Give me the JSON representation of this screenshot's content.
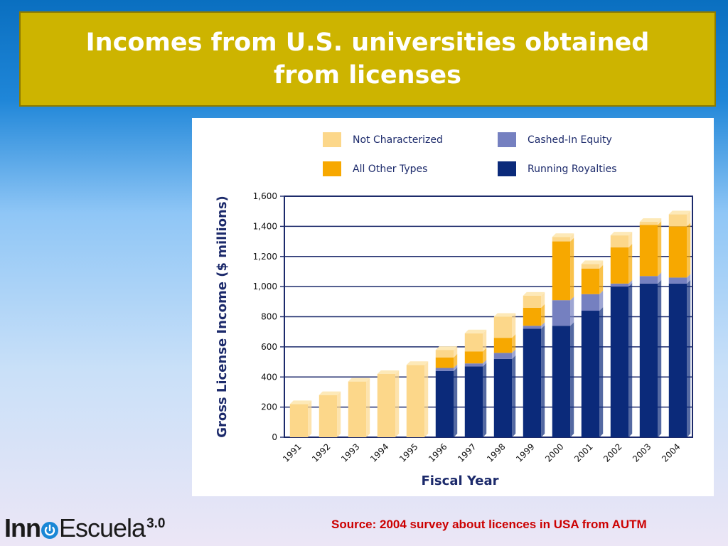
{
  "slide": {
    "title": "Incomes from U.S. universities obtained from licenses",
    "source": "Source: 2004 survey about licences in USA from AUTM"
  },
  "logo": {
    "part1": "Inn",
    "part2": "Escuela",
    "version": "3.0",
    "icon": "power-icon"
  },
  "colors": {
    "title_bg": "#cdb400",
    "not_characterized": "#fcd78a",
    "all_other_types": "#f7a800",
    "cashed_in_equity": "#7580c0",
    "running_royalties": "#0b2a7a",
    "source_text": "#cc0000"
  },
  "chart_data": {
    "type": "bar",
    "stacked": true,
    "title": "",
    "xlabel": "Fiscal Year",
    "ylabel": "Gross License Income ($ millions)",
    "ylim": [
      0,
      1600
    ],
    "yticks": [
      0,
      200,
      400,
      600,
      800,
      1000,
      1200,
      1400,
      1600
    ],
    "ytick_labels": [
      "0",
      "200",
      "400",
      "600",
      "800",
      "1,000",
      "1,200",
      "1,400",
      "1,600"
    ],
    "grid": "horizontal",
    "legend_position": "top",
    "categories": [
      "1991",
      "1992",
      "1993",
      "1994",
      "1995",
      "1996",
      "1997",
      "1998",
      "1999",
      "2000",
      "2001",
      "2002",
      "2003",
      "2004"
    ],
    "series": [
      {
        "name": "Running Royalties",
        "color": "#0b2a7a",
        "values": [
          0,
          0,
          0,
          0,
          0,
          440,
          470,
          520,
          720,
          740,
          840,
          1000,
          1020,
          1020
        ]
      },
      {
        "name": "Cashed-In Equity",
        "color": "#7580c0",
        "values": [
          0,
          0,
          0,
          0,
          0,
          20,
          20,
          40,
          20,
          170,
          110,
          20,
          50,
          40
        ]
      },
      {
        "name": "All Other Types",
        "color": "#f7a800",
        "values": [
          0,
          0,
          0,
          0,
          0,
          70,
          80,
          100,
          120,
          390,
          170,
          240,
          340,
          340
        ]
      },
      {
        "name": "Not Characterized",
        "color": "#fcd78a",
        "values": [
          220,
          280,
          370,
          420,
          480,
          50,
          120,
          140,
          80,
          30,
          30,
          80,
          20,
          80
        ]
      }
    ],
    "legend_order": [
      "Not Characterized",
      "Cashed-In Equity",
      "All Other Types",
      "Running Royalties"
    ]
  }
}
